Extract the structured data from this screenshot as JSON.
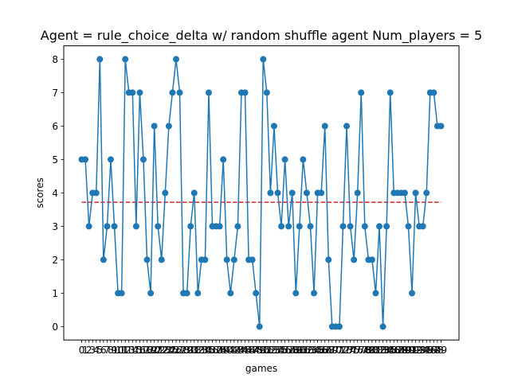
{
  "chart_data": {
    "type": "line",
    "title": "Agent = rule_choice_delta w/ random shuffle agent Num_players = 5",
    "xlabel": "games",
    "ylabel": "scores",
    "ylim": [
      -0.4,
      8.4
    ],
    "yticks": [
      0,
      1,
      2,
      3,
      4,
      5,
      6,
      7,
      8
    ],
    "xlim": [
      -4.95,
      103.95
    ],
    "x": [
      0,
      1,
      2,
      3,
      4,
      5,
      6,
      7,
      8,
      9,
      10,
      11,
      12,
      13,
      14,
      15,
      16,
      17,
      18,
      19,
      20,
      21,
      22,
      23,
      24,
      25,
      26,
      27,
      28,
      29,
      30,
      31,
      32,
      33,
      34,
      35,
      36,
      37,
      38,
      39,
      40,
      41,
      42,
      43,
      44,
      45,
      46,
      47,
      48,
      49,
      50,
      51,
      52,
      53,
      54,
      55,
      56,
      57,
      58,
      59,
      60,
      61,
      62,
      63,
      64,
      65,
      66,
      67,
      68,
      69,
      70,
      71,
      72,
      73,
      74,
      75,
      76,
      77,
      78,
      79,
      80,
      81,
      82,
      83,
      84,
      85,
      86,
      87,
      88,
      89,
      90,
      91,
      92,
      93,
      94,
      95,
      96,
      97,
      98,
      99
    ],
    "series": [
      {
        "color": "#1f77b4",
        "marker": "circle",
        "values": [
          5,
          5,
          3,
          4,
          4,
          8,
          2,
          3,
          5,
          3,
          1,
          1,
          8,
          7,
          7,
          3,
          7,
          5,
          2,
          1,
          6,
          3,
          2,
          4,
          6,
          7,
          8,
          7,
          1,
          1,
          3,
          4,
          1,
          2,
          2,
          7,
          3,
          3,
          3,
          5,
          2,
          1,
          2,
          3,
          7,
          7,
          2,
          2,
          1,
          0,
          8,
          7,
          4,
          6,
          4,
          3,
          5,
          3,
          4,
          1,
          3,
          5,
          4,
          3,
          1,
          4,
          4,
          6,
          2,
          0,
          0,
          0,
          3,
          6,
          3,
          2,
          4,
          7,
          3,
          2,
          2,
          1,
          3,
          0,
          3,
          7,
          4,
          4,
          4,
          4,
          3,
          1,
          4,
          3,
          3,
          4,
          7,
          7,
          6,
          6
        ]
      }
    ],
    "reference_line": {
      "y": 3.72,
      "color": "#d62728",
      "style": "dashed"
    },
    "grid": false,
    "legend": "none"
  }
}
